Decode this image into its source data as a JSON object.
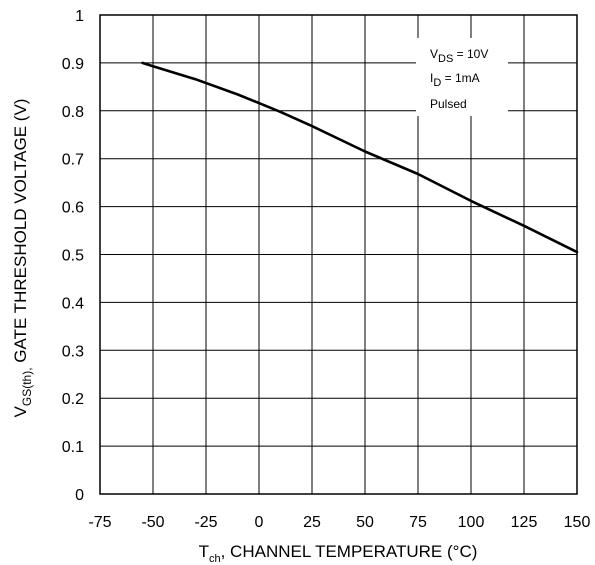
{
  "chart_data": {
    "type": "line",
    "title": "",
    "xlabel_main": "T",
    "xlabel_sub": "ch",
    "xlabel_rest": ", CHANNEL TEMPERATURE (°C)",
    "ylabel_main": "V",
    "ylabel_sub": "GS(th),",
    "ylabel_rest": " GATE THRESHOLD VOLTAGE (V)",
    "xlim": [
      -75,
      150
    ],
    "ylim": [
      0,
      1
    ],
    "xticks": [
      -75,
      -50,
      -25,
      0,
      25,
      50,
      75,
      100,
      125,
      150
    ],
    "yticks": [
      0,
      0.1,
      0.2,
      0.3,
      0.4,
      0.5,
      0.6,
      0.7,
      0.8,
      0.9,
      1
    ],
    "xtick_labels": [
      "-75",
      "-50",
      "-25",
      "0",
      "25",
      "50",
      "75",
      "100",
      "125",
      "150"
    ],
    "ytick_labels": [
      "0",
      "0.1",
      "0.2",
      "0.3",
      "0.4",
      "0.5",
      "0.6",
      "0.7",
      "0.8",
      "0.9",
      "1"
    ],
    "grid": true,
    "series": [
      {
        "x": [
          -55,
          -50,
          -30,
          -10,
          0,
          10,
          25,
          50,
          75,
          100,
          125,
          150
        ],
        "y": [
          0.9,
          0.893,
          0.866,
          0.834,
          0.816,
          0.798,
          0.768,
          0.715,
          0.668,
          0.612,
          0.56,
          0.505
        ]
      }
    ],
    "annotations": [
      {
        "main": "V",
        "sub": "DS",
        "rest": " = 10V"
      },
      {
        "main": "I",
        "sub": "D",
        "rest": " = 1mA"
      },
      {
        "main": "",
        "sub": "",
        "rest": "Pulsed"
      }
    ]
  }
}
